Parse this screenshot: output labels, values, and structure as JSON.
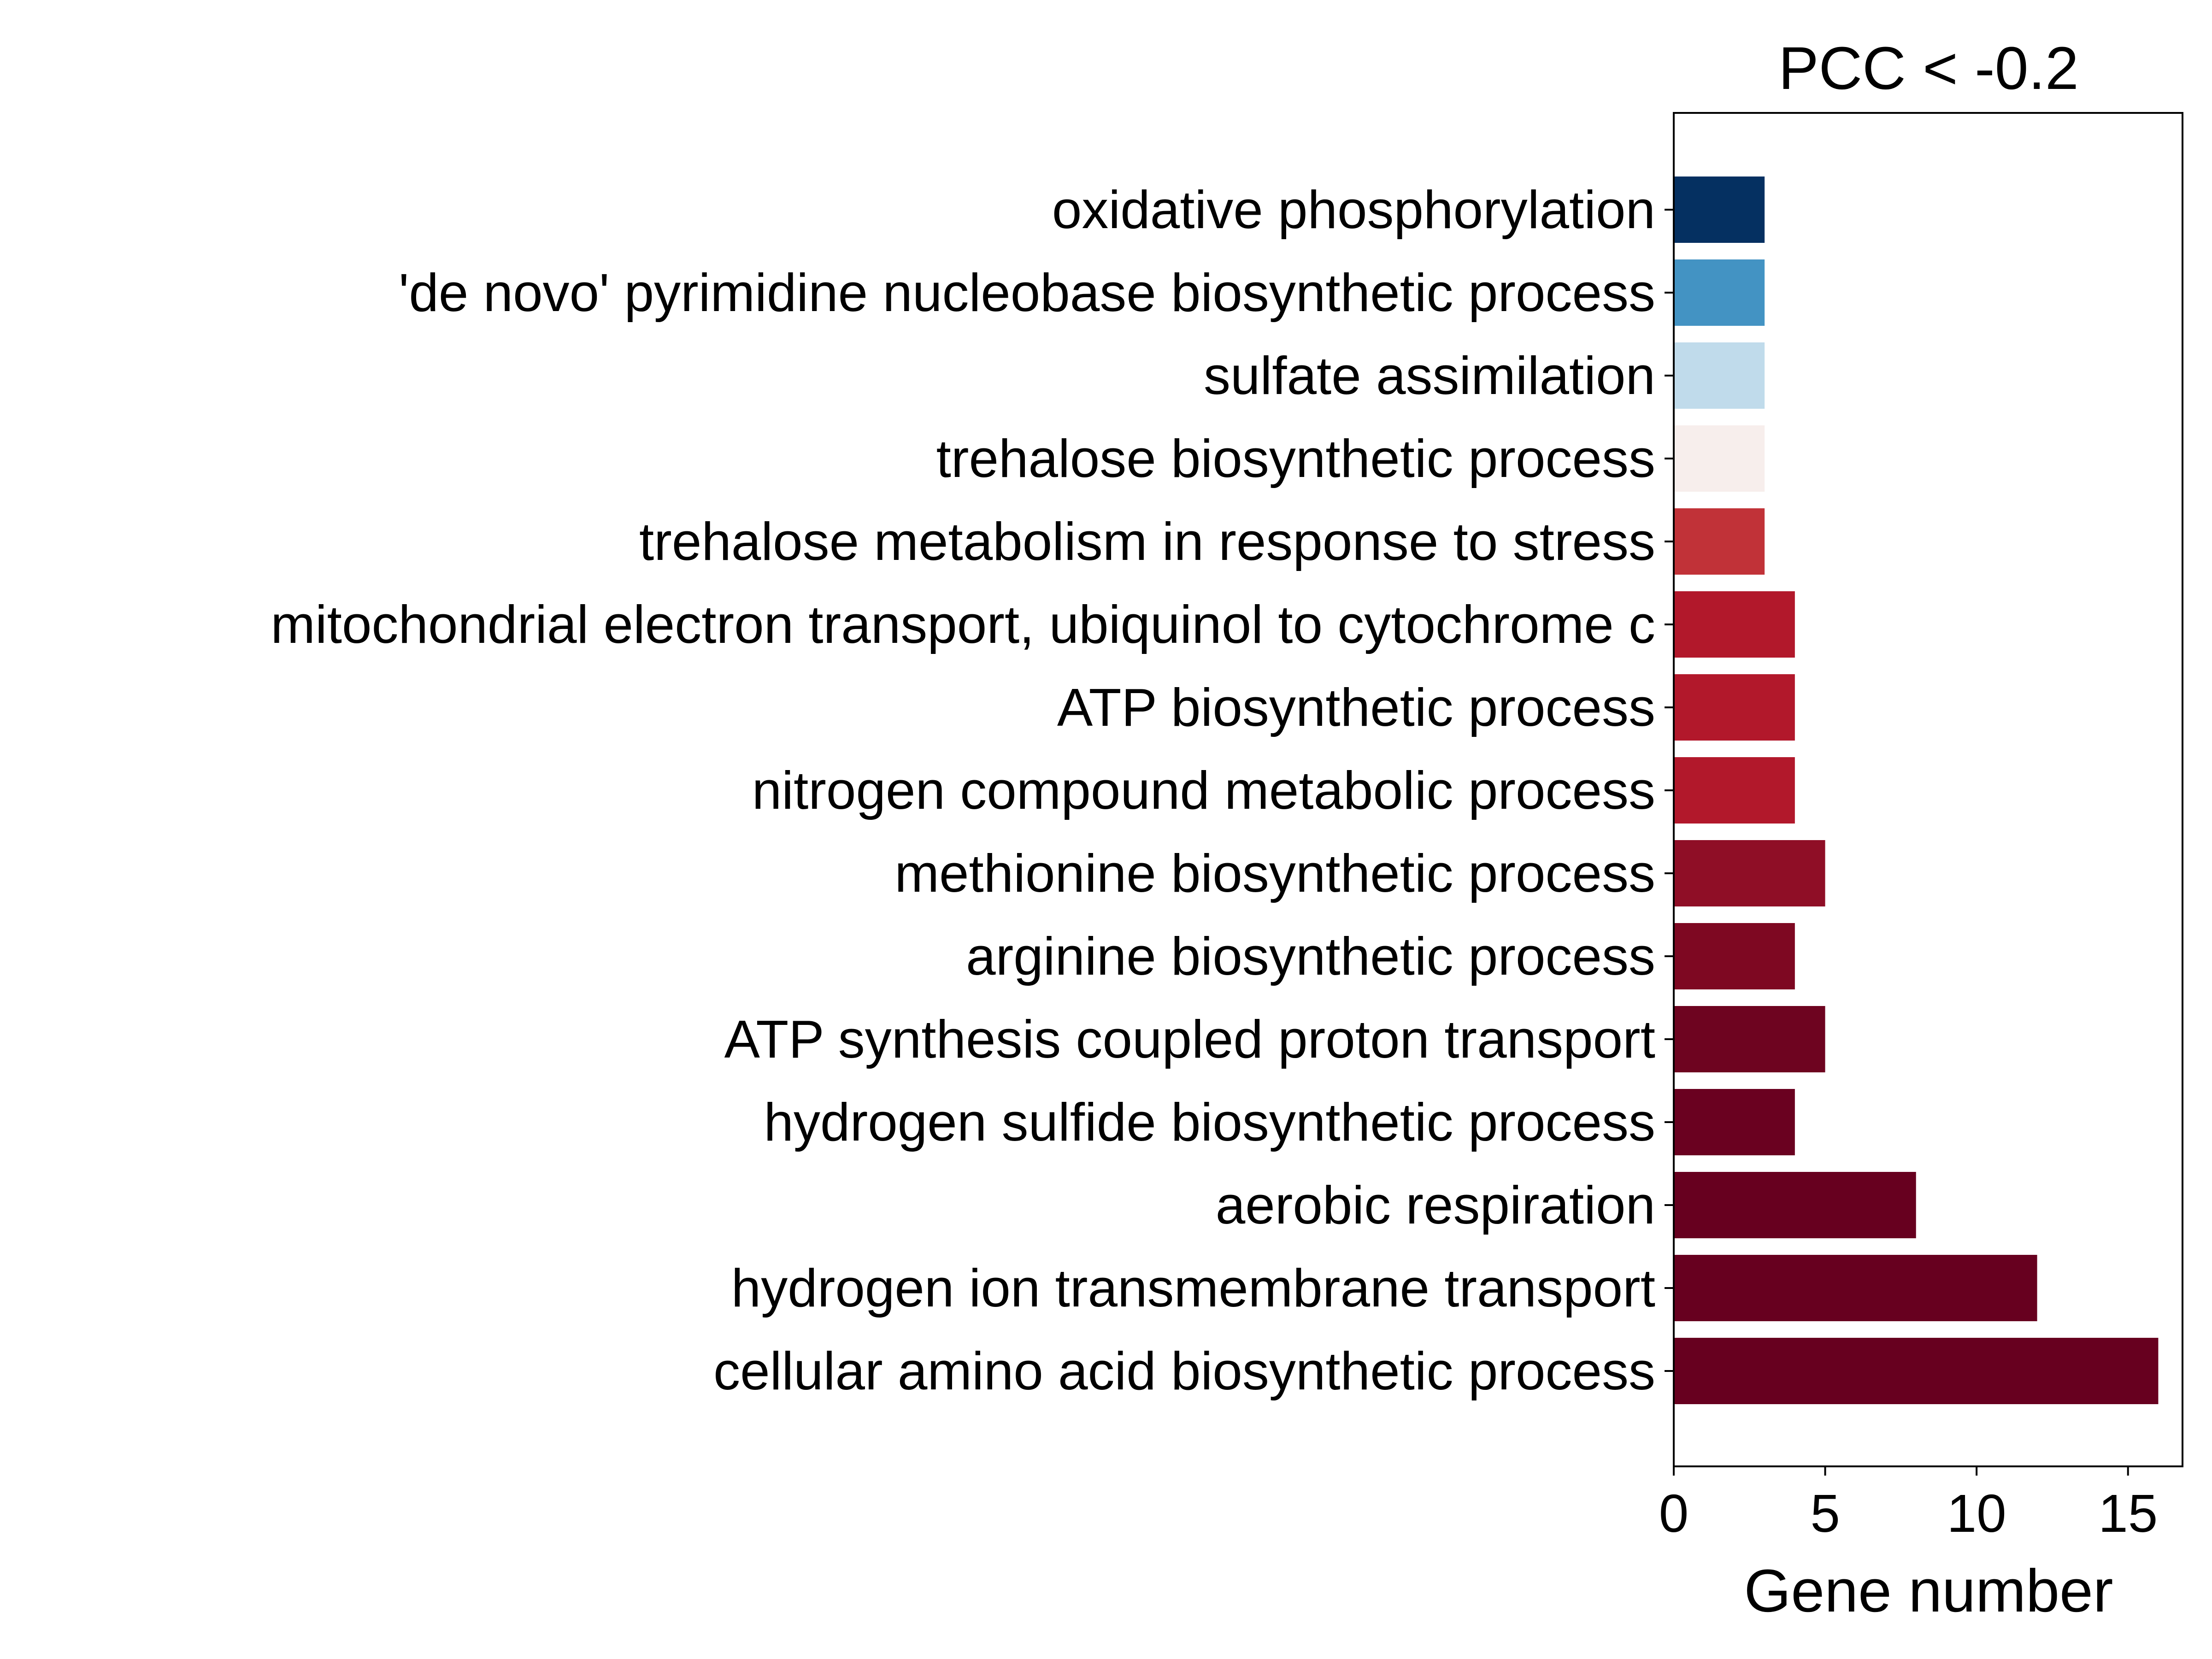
{
  "chart_data": {
    "type": "bar",
    "orientation": "horizontal",
    "title": "PCC < -0.2",
    "xlabel": "Gene number",
    "ylabel": "",
    "xlim": [
      0,
      16.8
    ],
    "xticks": [
      0,
      5,
      10,
      15
    ],
    "grid": false,
    "categories": [
      "oxidative phosphorylation",
      "'de novo' pyrimidine nucleobase biosynthetic process",
      "sulfate assimilation",
      "trehalose biosynthetic process",
      "trehalose metabolism in response to stress",
      "mitochondrial electron transport, ubiquinol to cytochrome c",
      "ATP biosynthetic process",
      "nitrogen compound metabolic process",
      "methionine biosynthetic process",
      "arginine biosynthetic process",
      "ATP synthesis coupled proton transport",
      "hydrogen sulfide biosynthetic process",
      "aerobic respiration",
      "hydrogen ion transmembrane transport",
      "cellular amino acid biosynthetic process"
    ],
    "values": [
      3,
      3,
      3,
      3,
      3,
      4,
      4,
      4,
      5,
      4,
      5,
      4,
      8,
      12,
      16
    ],
    "colors": [
      "#053061",
      "#4393c3",
      "#c0dbeb",
      "#f7eeec",
      "#c13238",
      "#b2182b",
      "#b2182b",
      "#b2182b",
      "#8f0e26",
      "#7e0822",
      "#6e0420",
      "#6a0120",
      "#67001f",
      "#67001f",
      "#67001f"
    ]
  }
}
